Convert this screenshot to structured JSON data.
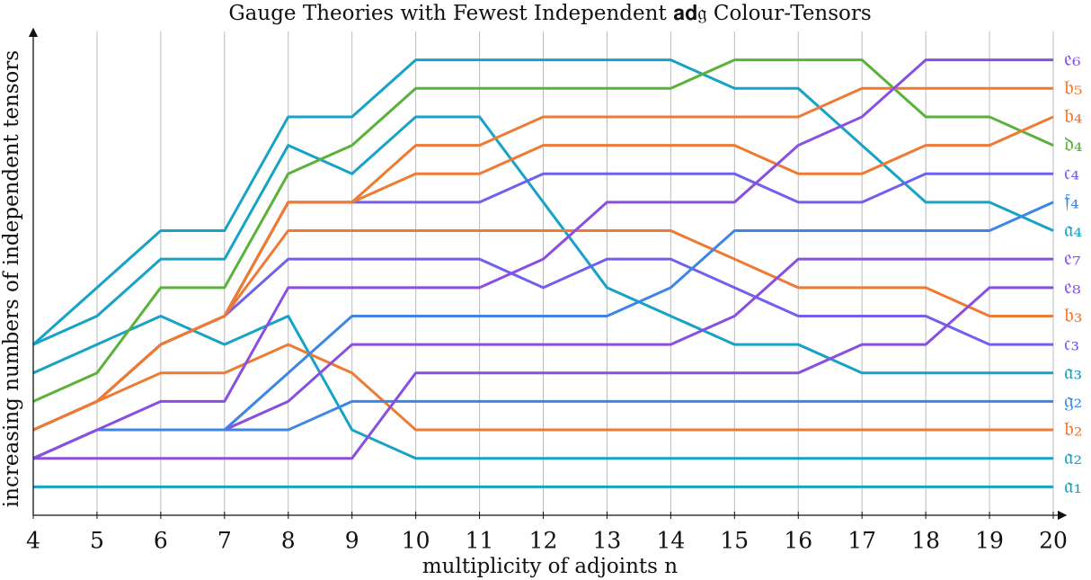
{
  "chart_data": {
    "type": "line",
    "title": "Gauge Theories with Fewest Independent 𝐚𝐝𝔤 Colour-Tensors",
    "x_label": "multiplicity of adjoints n",
    "y_label": "increasing numbers of independent tensors",
    "x": [
      4,
      5,
      6,
      7,
      8,
      9,
      10,
      11,
      12,
      13,
      14,
      15,
      16,
      17,
      18,
      19,
      20
    ],
    "xlim": [
      4,
      20
    ],
    "xticks": [
      4,
      5,
      6,
      7,
      8,
      9,
      10,
      11,
      12,
      13,
      14,
      15,
      16,
      17,
      18,
      19,
      20
    ],
    "ylim": [
      -1,
      16
    ],
    "grid": true,
    "series": [
      {
        "name": "𝔞₁",
        "color": "#17a2c8",
        "values": [
          0,
          0,
          0,
          0,
          0,
          0,
          0,
          0,
          0,
          0,
          0,
          0,
          0,
          0,
          0,
          0,
          0
        ]
      },
      {
        "name": "𝔞₂",
        "color": "#17a2c8",
        "values": [
          4,
          5,
          6,
          5,
          6,
          2,
          1,
          1,
          1,
          1,
          1,
          1,
          1,
          1,
          1,
          1,
          1
        ]
      },
      {
        "name": "𝔟₂",
        "color": "#ee7a33",
        "values": [
          2,
          3,
          4,
          4,
          5,
          4,
          2,
          2,
          2,
          2,
          2,
          2,
          2,
          2,
          2,
          2,
          2
        ]
      },
      {
        "name": "𝔤₂",
        "color": "#3d86e6",
        "values": [
          1,
          2,
          2,
          2,
          2,
          3,
          3,
          3,
          3,
          3,
          3,
          3,
          3,
          3,
          3,
          3,
          3
        ]
      },
      {
        "name": "𝔞₃",
        "color": "#17a2c8",
        "values": [
          5,
          6,
          8,
          8,
          12,
          11,
          13,
          13,
          10,
          7,
          6,
          5,
          5,
          4,
          4,
          4,
          4
        ]
      },
      {
        "name": "𝔠₃",
        "color": "#7060f0",
        "values": [
          2,
          3,
          5,
          6,
          8,
          8,
          8,
          8,
          7,
          8,
          8,
          7,
          6,
          6,
          6,
          5,
          5
        ]
      },
      {
        "name": "𝔟₃",
        "color": "#ee7a33",
        "values": [
          2,
          3,
          5,
          6,
          9,
          9,
          9,
          9,
          9,
          9,
          9,
          8,
          7,
          7,
          7,
          6,
          6
        ]
      },
      {
        "name": "𝔢₈",
        "color": "#8a4fe0",
        "values": [
          1,
          1,
          1,
          1,
          1,
          1,
          4,
          4,
          4,
          4,
          4,
          4,
          4,
          5,
          5,
          7,
          7
        ]
      },
      {
        "name": "𝔢₇",
        "color": "#8a4fe0",
        "values": [
          1,
          2,
          2,
          2,
          3,
          5,
          5,
          5,
          5,
          5,
          5,
          6,
          8,
          8,
          8,
          8,
          8
        ]
      },
      {
        "name": "𝔞₄",
        "color": "#17a2c8",
        "values": [
          5,
          7,
          9,
          9,
          13,
          13,
          15,
          15,
          15,
          15,
          15,
          14,
          14,
          12,
          10,
          10,
          9
        ]
      },
      {
        "name": "𝔣₄",
        "color": "#3d86e6",
        "values": [
          1,
          2,
          2,
          2,
          4,
          6,
          6,
          6,
          6,
          6,
          7,
          9,
          9,
          9,
          9,
          9,
          10
        ]
      },
      {
        "name": "𝔠₄",
        "color": "#7060f0",
        "values": [
          2,
          3,
          5,
          6,
          10,
          10,
          10,
          10,
          11,
          11,
          11,
          11,
          10,
          10,
          11,
          11,
          11
        ]
      },
      {
        "name": "𝔡₄",
        "color": "#5ab23a",
        "values": [
          3,
          4,
          7,
          7,
          11,
          12,
          14,
          14,
          14,
          14,
          14,
          15,
          15,
          15,
          13,
          13,
          12
        ]
      },
      {
        "name": "𝔟₄",
        "color": "#ee7a33",
        "values": [
          2,
          3,
          5,
          6,
          10,
          10,
          11,
          11,
          12,
          12,
          12,
          12,
          11,
          11,
          12,
          12,
          13
        ]
      },
      {
        "name": "𝔟₅",
        "color": "#ee7a33",
        "values": [
          2,
          3,
          5,
          6,
          10,
          10,
          12,
          12,
          13,
          13,
          13,
          13,
          13,
          14,
          14,
          14,
          14
        ]
      },
      {
        "name": "𝔢₆",
        "color": "#8a4fe0",
        "values": [
          1,
          2,
          3,
          3,
          7,
          7,
          7,
          7,
          8,
          10,
          10,
          10,
          12,
          13,
          15,
          15,
          15
        ]
      }
    ]
  }
}
